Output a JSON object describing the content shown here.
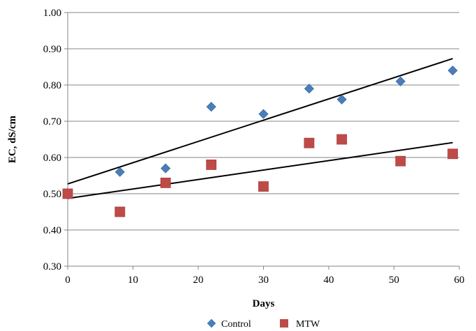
{
  "chart_data": {
    "type": "scatter",
    "xlabel": "Days",
    "ylabel": "EC, dS/cm",
    "xlim": [
      0,
      60
    ],
    "ylim": [
      0.3,
      1.0
    ],
    "x_ticks": [
      0,
      10,
      20,
      30,
      40,
      50,
      60
    ],
    "y_ticks": [
      0.3,
      0.4,
      0.5,
      0.6,
      0.7,
      0.8,
      0.9,
      1.0
    ],
    "x_tick_labels": [
      "0",
      "10",
      "20",
      "30",
      "40",
      "50",
      "60"
    ],
    "y_tick_labels": [
      "0.30",
      "0.40",
      "0.50",
      "0.60",
      "0.70",
      "0.80",
      "0.90",
      "1.00"
    ],
    "grid": "horizontal",
    "legend_position": "bottom",
    "series": [
      {
        "name": "Control",
        "marker": "diamond",
        "color": "#4a7ebb",
        "x": [
          8,
          15,
          22,
          30,
          37,
          42,
          51,
          59
        ],
        "y": [
          0.56,
          0.57,
          0.74,
          0.72,
          0.79,
          0.76,
          0.81,
          0.84
        ],
        "trendline": {
          "x": [
            0,
            59
          ],
          "y": [
            0.527,
            0.873
          ]
        }
      },
      {
        "name": "MTW",
        "marker": "square",
        "color": "#be4b48",
        "x": [
          0,
          8,
          15,
          22,
          30,
          37,
          42,
          51,
          59
        ],
        "y": [
          0.5,
          0.45,
          0.53,
          0.58,
          0.52,
          0.64,
          0.65,
          0.59,
          0.61
        ],
        "trendline": {
          "x": [
            0,
            59
          ],
          "y": [
            0.487,
            0.641
          ]
        }
      }
    ]
  }
}
